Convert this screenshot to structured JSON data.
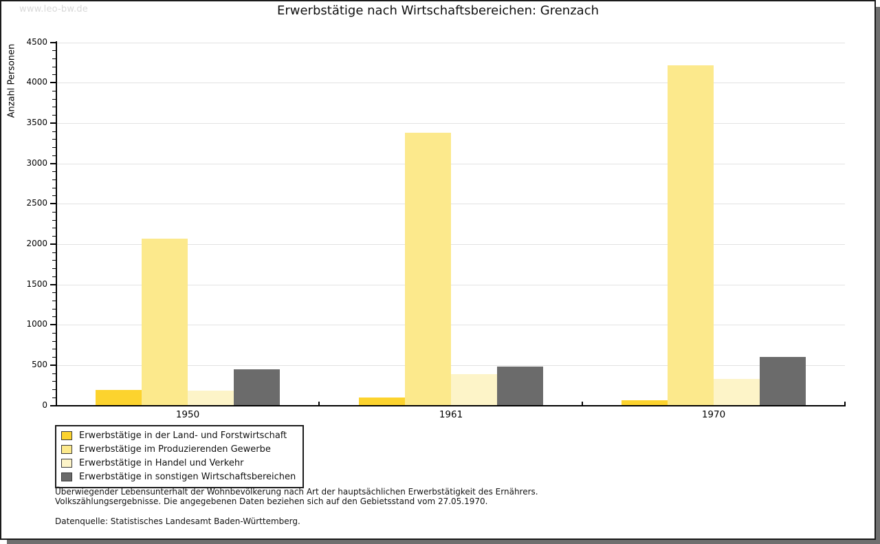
{
  "watermark": "www.leo-bw.de",
  "title": "Erwerbstätige nach Wirtschaftsbereichen: Grenzach",
  "footnotes": {
    "line1": "Überwiegender Lebensunterhalt der Wohnbevölkerung nach Art der hauptsächlichen Erwerbstätigkeit des Ernährers.",
    "line2": "Volkszählungsergebnisse. Die angegebenen Daten beziehen sich auf den Gebietsstand vom 27.05.1970.",
    "source": "Datenquelle: Statistisches Landesamt Baden-Württemberg."
  },
  "chart_data": {
    "type": "bar",
    "title": "Erwerbstätige nach Wirtschaftsbereichen: Grenzach",
    "xlabel": "",
    "ylabel": "Anzahl Personen",
    "categories": [
      "1950",
      "1961",
      "1970"
    ],
    "series": [
      {
        "name": "Erwerbstätige in der Land- und Forstwirtschaft",
        "color": "#fcd32e",
        "values": [
          190,
          100,
          65
        ]
      },
      {
        "name": "Erwerbstätige im Produzierenden Gewerbe",
        "color": "#fce98c",
        "values": [
          2065,
          3380,
          4215
        ]
      },
      {
        "name": "Erwerbstätige in Handel und Verkehr",
        "color": "#fdf4c8",
        "values": [
          180,
          390,
          325
        ]
      },
      {
        "name": "Erwerbstätige in sonstigen Wirtschaftsbereichen",
        "color": "#6b6b6b",
        "values": [
          450,
          485,
          600
        ]
      }
    ],
    "ylim": [
      0,
      4500
    ],
    "ytick_step": 500,
    "ytick_minor_step": 100,
    "grid": true,
    "legend_position": "bottom-left"
  },
  "frame": {
    "border_color": "#1a1a1a",
    "shadow_color": "#6f6f6f",
    "gridline_color": "#e2e2e2"
  }
}
